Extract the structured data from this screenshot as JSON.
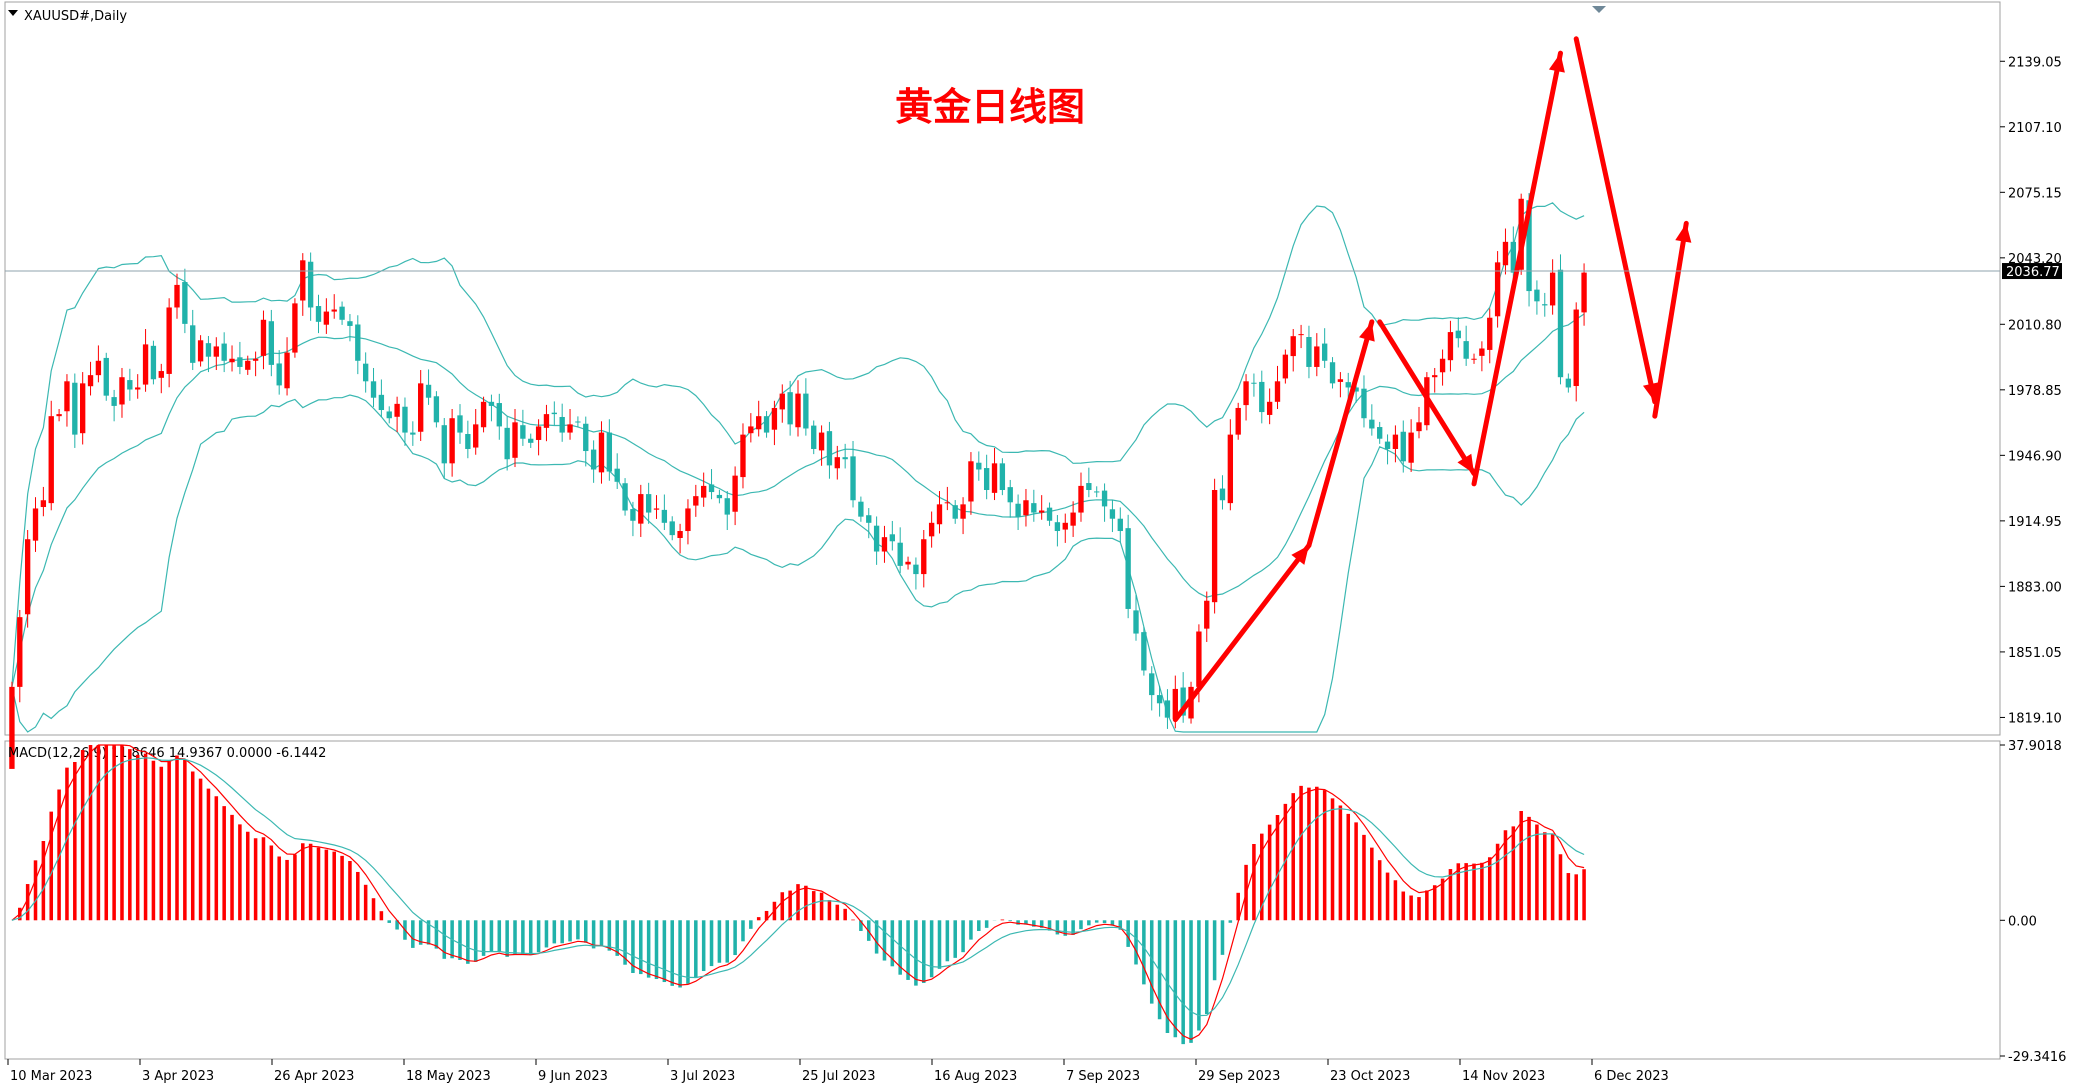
{
  "symbol": "XAUUSD#,Daily",
  "annotation": "黄金日线图",
  "current_price": "2036.77",
  "macd_label": "MACD(12,26,9) 11.8646 14.9367 0.0000 -6.1442",
  "colors": {
    "up": "#ff0000",
    "down": "#20b2aa",
    "band": "#3cb8b2",
    "arrow": "#ff0000",
    "price_line": "#8fa3ad",
    "tag_bg": "#000000"
  },
  "chart_data": {
    "type": "candlestick",
    "price_axis": {
      "ticks": [
        "2139.05",
        "2107.10",
        "2075.15",
        "2043.20",
        "2010.80",
        "1978.85",
        "1946.90",
        "1914.95",
        "1883.00",
        "1851.05",
        "1819.10"
      ],
      "range": [
        1812,
        2166
      ]
    },
    "macd_axis": {
      "ticks": [
        "37.9018",
        "0.00",
        "-29.3416"
      ],
      "range": [
        -29.3416,
        37.9018
      ]
    },
    "date_ticks": [
      "10 Mar 2023",
      "3 Apr 2023",
      "26 Apr 2023",
      "18 May 2023",
      "9 Jun 2023",
      "3 Jul 2023",
      "25 Jul 2023",
      "16 Aug 2023",
      "7 Sep 2023",
      "29 Sep 2023",
      "23 Oct 2023",
      "14 Nov 2023",
      "6 Dec 2023"
    ],
    "close": [
      1834,
      1868,
      1906,
      1921,
      1925,
      1966,
      1967,
      1983,
      1957,
      1982,
      1986,
      1993,
      1976,
      1971,
      1985,
      1979,
      1980,
      2001,
      1984,
      1988,
      2019,
      2030,
      2011,
      1992,
      2003,
      1995,
      2000,
      1993,
      1994,
      1990,
      1993,
      1994,
      2013,
      1991,
      1981,
      1997,
      2021,
      2042,
      2019,
      2012,
      2017,
      2018,
      2013,
      2010,
      1993,
      1983,
      1975,
      1969,
      1965,
      1972,
      1958,
      1957,
      1982,
      1975,
      1963,
      1943,
      1965,
      1958,
      1950,
      1962,
      1973,
      1971,
      1961,
      1945,
      1963,
      1955,
      1953,
      1961,
      1967,
      1967,
      1958,
      1962,
      1963,
      1949,
      1940,
      1958,
      1939,
      1934,
      1920,
      1915,
      1928,
      1919,
      1921,
      1914,
      1908,
      1910,
      1921,
      1927,
      1932,
      1929,
      1926,
      1918,
      1937,
      1957,
      1961,
      1966,
      1958,
      1970,
      1977,
      1962,
      1977,
      1960,
      1950,
      1958,
      1942,
      1946,
      1945,
      1925,
      1917,
      1914,
      1900,
      1907,
      1905,
      1893,
      1895,
      1889,
      1906,
      1914,
      1923,
      1924,
      1916,
      1923,
      1944,
      1940,
      1930,
      1943,
      1930,
      1924,
      1917,
      1925,
      1919,
      1920,
      1915,
      1910,
      1914,
      1919,
      1932,
      1930,
      1929,
      1922,
      1916,
      1910,
      1872,
      1860,
      1842,
      1830,
      1826,
      1819,
      1833,
      1820,
      1834,
      1861,
      1876,
      1930,
      1925,
      1957,
      1970,
      1983,
      1982,
      1968,
      1973,
      1983,
      1996,
      2005,
      2006,
      1990,
      2000,
      1993,
      1982,
      1984,
      1980,
      1978,
      1965,
      1960,
      1955,
      1950,
      1957,
      1944,
      1958,
      1963,
      1985,
      1986,
      1994,
      2007,
      2004,
      1994,
      1994,
      1999,
      2014,
      2041,
      2051,
      2036,
      2072,
      2027,
      2022,
      2020,
      2036,
      1985,
      1980,
      2018,
      2036
    ],
    "macd": {
      "value_label": "11.8646",
      "signal_label": "14.9367"
    }
  }
}
